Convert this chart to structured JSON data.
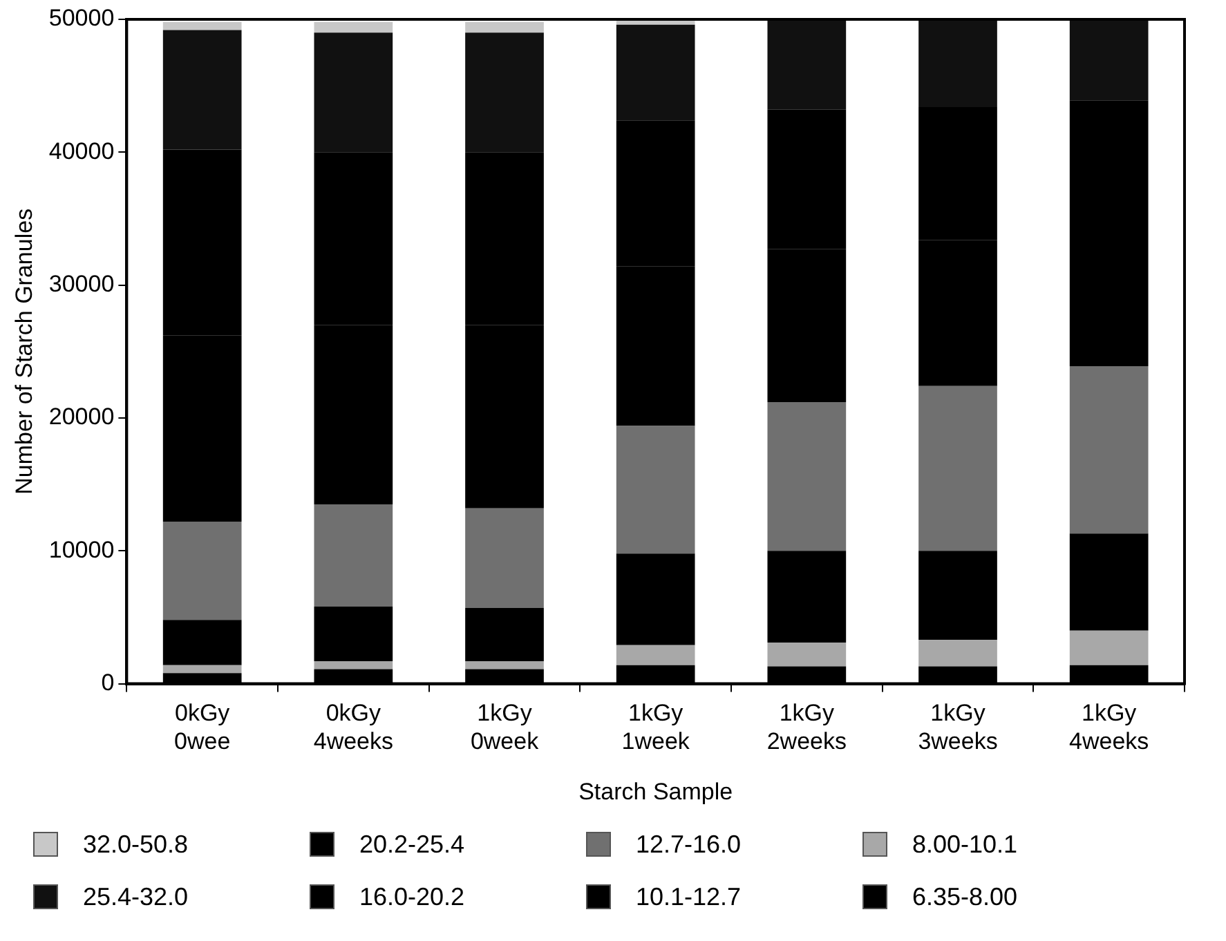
{
  "chart_data": {
    "type": "bar",
    "stacked": true,
    "xlabel": "Starch Sample",
    "ylabel": "Number of Starch Granules",
    "categories": [
      "0kGy\n0wee",
      "0kGy\n4weeks",
      "1kGy\n0week",
      "1kGy\n1week",
      "1kGy\n2weeks",
      "1kGy\n3weeks",
      "1kGy\n4weeks"
    ],
    "ylim": [
      0,
      50000
    ],
    "yticks": [
      0,
      10000,
      20000,
      30000,
      40000,
      50000
    ],
    "grid": false,
    "legend": "bottom",
    "series": [
      {
        "name": "6.35-8.00",
        "color": "#000000",
        "values": [
          800,
          1100,
          1100,
          1400,
          1300,
          1300,
          1400
        ]
      },
      {
        "name": "8.00-10.1",
        "color": "#a8a8a8",
        "values": [
          600,
          600,
          600,
          1500,
          1800,
          2000,
          2600
        ]
      },
      {
        "name": "10.1-12.7",
        "color": "#000000",
        "values": [
          3400,
          4100,
          4000,
          6900,
          6900,
          6700,
          7300
        ]
      },
      {
        "name": "12.7-16.0",
        "color": "#707070",
        "values": [
          7400,
          7700,
          7500,
          9600,
          11200,
          12400,
          12600
        ]
      },
      {
        "name": "16.0-20.2",
        "color": "#000000",
        "values": [
          14000,
          13500,
          13800,
          12000,
          11500,
          11000,
          10500
        ]
      },
      {
        "name": "20.2-25.4",
        "color": "#000000",
        "values": [
          14000,
          13000,
          13000,
          11000,
          10500,
          10000,
          9500
        ]
      },
      {
        "name": "25.4-32.0",
        "color": "#111111",
        "values": [
          9000,
          9000,
          9000,
          7200,
          6800,
          6600,
          6100
        ]
      },
      {
        "name": "32.0-50.8",
        "color": "#c8c8c8",
        "values": [
          600,
          800,
          800,
          300,
          0,
          0,
          0
        ]
      }
    ]
  }
}
